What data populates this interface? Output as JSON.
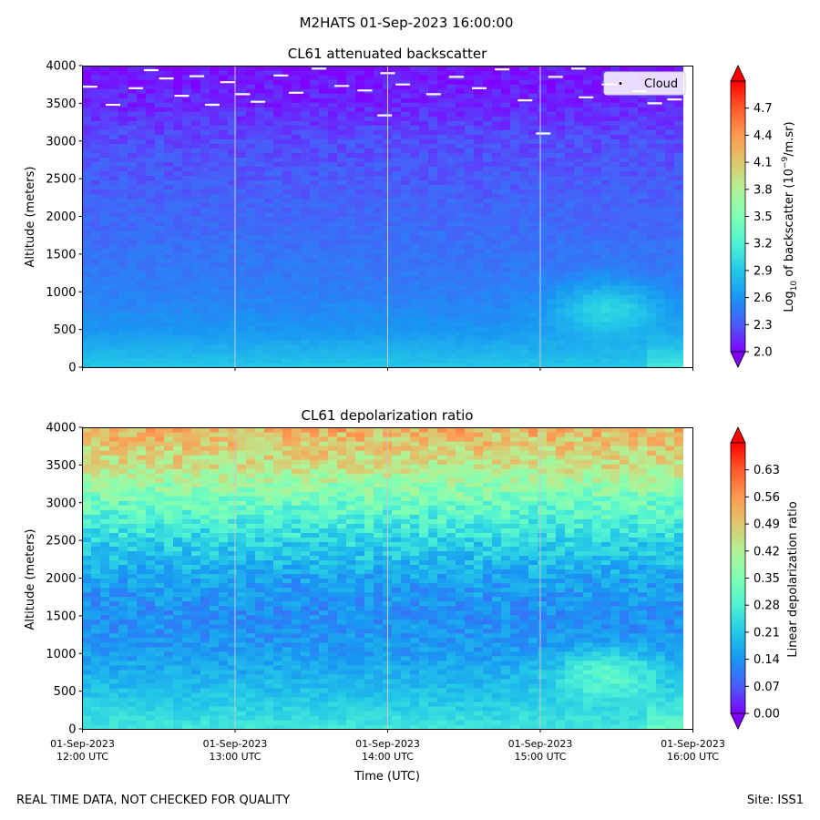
{
  "figure": {
    "suptitle": "M2HATS 01-Sep-2023 16:00:00",
    "footer_left": "REAL TIME DATA, NOT CHECKED FOR QUALITY",
    "footer_right": "Site: ISS1"
  },
  "colors": {
    "rainbow": [
      "#8000ff",
      "#4a5cf9",
      "#1996f3",
      "#23c8e7",
      "#4ff2d4",
      "#80ffb4",
      "#b1f296",
      "#dec66e",
      "#ff9a52",
      "#ff5a2b",
      "#ff0000"
    ]
  },
  "chart_data": [
    {
      "type": "heatmap",
      "title": "CL61 attenuated backscatter",
      "ylabel": "Altitude (meters)",
      "ylim": [
        0,
        4000
      ],
      "yticks": [
        "0",
        "500",
        "1000",
        "1500",
        "2000",
        "2500",
        "3000",
        "3500",
        "4000"
      ],
      "xticks": [
        {
          "date": "01-Sep-2023",
          "time": "12:00 UTC"
        },
        {
          "date": "01-Sep-2023",
          "time": "13:00 UTC"
        },
        {
          "date": "01-Sep-2023",
          "time": "14:00 UTC"
        },
        {
          "date": "01-Sep-2023",
          "time": "15:00 UTC"
        },
        {
          "date": "01-Sep-2023",
          "time": "16:00 UTC"
        }
      ],
      "xrange_hours": [
        12,
        16
      ],
      "colorbar": {
        "label_prefix": "Log",
        "label_sub": "10",
        "label_mid": " of backscatter (10",
        "label_sup": "−9",
        "label_suffix": "/m.sr)",
        "min": 2.0,
        "max": 5.0,
        "ticks": [
          "2.0",
          "2.3",
          "2.6",
          "2.9",
          "3.2",
          "3.5",
          "3.8",
          "4.1",
          "4.4",
          "4.7"
        ]
      },
      "profile": {
        "altitude": [
          0,
          500,
          1000,
          2000,
          3000,
          3500,
          4000
        ],
        "value": [
          2.9,
          2.6,
          2.48,
          2.36,
          2.25,
          2.12,
          2.05
        ]
      },
      "features": [
        {
          "kind": "aerosol_blob",
          "time_hours": 15.45,
          "altitude": 750,
          "value": 3.0
        }
      ],
      "legend": {
        "entry": "Cloud",
        "position": "top-right"
      },
      "cloud_detections": [
        {
          "t": 12.05,
          "alt": 3720
        },
        {
          "t": 12.2,
          "alt": 3480
        },
        {
          "t": 12.35,
          "alt": 3700
        },
        {
          "t": 12.45,
          "alt": 3940
        },
        {
          "t": 12.55,
          "alt": 3830
        },
        {
          "t": 12.65,
          "alt": 3600
        },
        {
          "t": 12.75,
          "alt": 3860
        },
        {
          "t": 12.85,
          "alt": 3480
        },
        {
          "t": 12.95,
          "alt": 3780
        },
        {
          "t": 13.05,
          "alt": 3620
        },
        {
          "t": 13.15,
          "alt": 3520
        },
        {
          "t": 13.3,
          "alt": 3870
        },
        {
          "t": 13.4,
          "alt": 3640
        },
        {
          "t": 13.55,
          "alt": 3960
        },
        {
          "t": 13.7,
          "alt": 3730
        },
        {
          "t": 13.85,
          "alt": 3670
        },
        {
          "t": 13.98,
          "alt": 3340
        },
        {
          "t": 14.0,
          "alt": 3900
        },
        {
          "t": 14.1,
          "alt": 3750
        },
        {
          "t": 14.3,
          "alt": 3620
        },
        {
          "t": 14.45,
          "alt": 3850
        },
        {
          "t": 14.6,
          "alt": 3700
        },
        {
          "t": 14.75,
          "alt": 3950
        },
        {
          "t": 14.9,
          "alt": 3540
        },
        {
          "t": 15.02,
          "alt": 3100
        },
        {
          "t": 15.1,
          "alt": 3850
        },
        {
          "t": 15.25,
          "alt": 3960
        },
        {
          "t": 15.3,
          "alt": 3580
        },
        {
          "t": 15.45,
          "alt": 3750
        },
        {
          "t": 15.65,
          "alt": 3660
        },
        {
          "t": 15.75,
          "alt": 3500
        },
        {
          "t": 15.88,
          "alt": 3550
        }
      ]
    },
    {
      "type": "heatmap",
      "title": "CL61 depolarization ratio",
      "ylabel": "Altitude (meters)",
      "ylim": [
        0,
        4000
      ],
      "yticks": [
        "0",
        "500",
        "1000",
        "1500",
        "2000",
        "2500",
        "3000",
        "3500",
        "4000"
      ],
      "xticks": [
        {
          "date": "01-Sep-2023",
          "time": "12:00 UTC"
        },
        {
          "date": "01-Sep-2023",
          "time": "13:00 UTC"
        },
        {
          "date": "01-Sep-2023",
          "time": "14:00 UTC"
        },
        {
          "date": "01-Sep-2023",
          "time": "15:00 UTC"
        },
        {
          "date": "01-Sep-2023",
          "time": "16:00 UTC"
        }
      ],
      "xrange_hours": [
        12,
        16
      ],
      "xlabel": "Time (UTC)",
      "colorbar": {
        "label": "Linear depolarization ratio",
        "min": 0.0,
        "max": 0.7,
        "ticks": [
          "0.00",
          "0.07",
          "0.14",
          "0.21",
          "0.28",
          "0.35",
          "0.42",
          "0.49",
          "0.56",
          "0.63"
        ]
      },
      "profile": {
        "altitude": [
          0,
          500,
          1000,
          1500,
          2000,
          2500,
          3000,
          3500,
          4000
        ],
        "value": [
          0.26,
          0.2,
          0.15,
          0.13,
          0.16,
          0.23,
          0.32,
          0.45,
          0.52
        ]
      },
      "features": [
        {
          "kind": "aerosol_blob",
          "time_hours": 15.45,
          "altitude": 700,
          "value": 0.3
        }
      ]
    }
  ]
}
